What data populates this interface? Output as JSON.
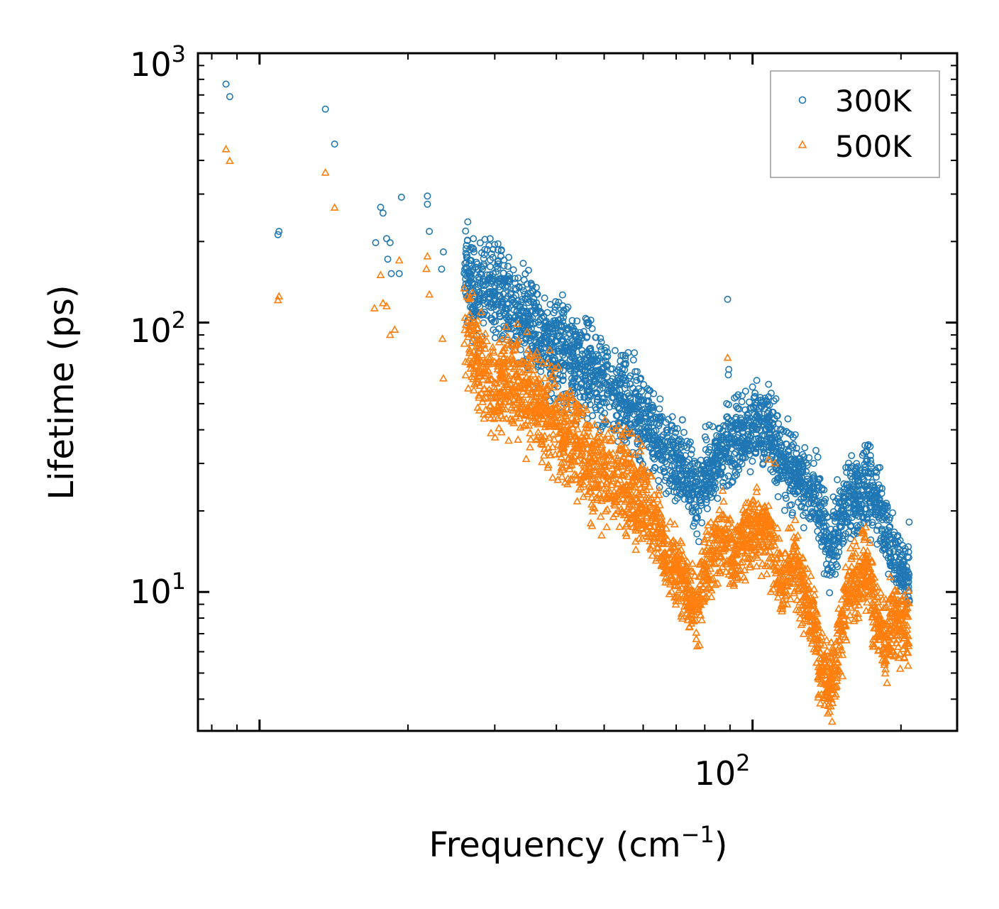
{
  "chart_data": {
    "type": "scatter",
    "xscale": "log",
    "yscale": "log",
    "xlim": [
      7.5,
      260
    ],
    "ylim": [
      3.05,
      1000
    ],
    "xlabel": "Frequency (cm",
    "xlabel_sup": "−1",
    "xlabel_close": ")",
    "ylabel": "Lifetime (ps)",
    "x_ticks": [
      {
        "base": "10",
        "exp": "2",
        "value": 100
      }
    ],
    "y_ticks": [
      {
        "base": "10",
        "exp": "1",
        "value": 10
      },
      {
        "base": "10",
        "exp": "2",
        "value": 100
      },
      {
        "base": "10",
        "exp": "3",
        "value": 1000
      }
    ],
    "legend_position": "top-right",
    "series": [
      {
        "name": "300K",
        "color": "#1f77b4",
        "marker": "circle",
        "anchors": [
          [
            8.55,
            768
          ],
          [
            8.7,
            690
          ],
          [
            10.9,
            212
          ],
          [
            10.95,
            218
          ],
          [
            13.6,
            620
          ],
          [
            14.2,
            460
          ],
          [
            17.2,
            198
          ],
          [
            17.6,
            268
          ],
          [
            17.8,
            255
          ],
          [
            18.1,
            205
          ],
          [
            18.4,
            198
          ],
          [
            18.2,
            172
          ],
          [
            18.5,
            152
          ],
          [
            19.2,
            152
          ],
          [
            19.4,
            292
          ],
          [
            21.9,
            295
          ],
          [
            22.1,
            218
          ],
          [
            21.9,
            275
          ],
          [
            23.4,
            158
          ],
          [
            23.6,
            183
          ],
          [
            26.2,
            160
          ],
          [
            27.2,
            125
          ],
          [
            29.6,
            142
          ],
          [
            32,
            118
          ],
          [
            33.5,
            102
          ],
          [
            36.8,
            90
          ],
          [
            40.5,
            80
          ],
          [
            44.2,
            70
          ],
          [
            47.5,
            64
          ],
          [
            51.8,
            57
          ],
          [
            56.5,
            49
          ],
          [
            61.5,
            41
          ],
          [
            66.5,
            34
          ],
          [
            70.8,
            30
          ],
          [
            74.5,
            27
          ],
          [
            77.2,
            23
          ],
          [
            80.5,
            27
          ],
          [
            85,
            31
          ],
          [
            88.2,
            33
          ],
          [
            91.8,
            37
          ],
          [
            95.5,
            39
          ],
          [
            100,
            40
          ],
          [
            104.5,
            43
          ],
          [
            107.5,
            42
          ],
          [
            111,
            36
          ],
          [
            114.5,
            31
          ],
          [
            119,
            29
          ],
          [
            124,
            26
          ],
          [
            128.5,
            24
          ],
          [
            133.5,
            22.5
          ],
          [
            138.5,
            19
          ],
          [
            143,
            14
          ],
          [
            147,
            15.5
          ],
          [
            150.5,
            19
          ],
          [
            155,
            21
          ],
          [
            160,
            22
          ],
          [
            164,
            23
          ],
          [
            168.5,
            25
          ],
          [
            172.5,
            24
          ],
          [
            177,
            22
          ],
          [
            181,
            21
          ],
          [
            185.5,
            17
          ],
          [
            190.5,
            15
          ],
          [
            195.5,
            13.5
          ],
          [
            200.5,
            12.5
          ],
          [
            206,
            12
          ]
        ],
        "outliers": [
          [
            89,
            122
          ],
          [
            89.5,
            67
          ],
          [
            89.3,
            64
          ],
          [
            102,
            61
          ],
          [
            107.8,
            59
          ],
          [
            129,
            27
          ]
        ]
      },
      {
        "name": "500K",
        "color": "#ff7f0e",
        "marker": "triangle",
        "anchors": [
          [
            8.55,
            440
          ],
          [
            8.7,
            398
          ],
          [
            10.9,
            121
          ],
          [
            10.95,
            125
          ],
          [
            13.6,
            360
          ],
          [
            14.2,
            267
          ],
          [
            17.1,
            113
          ],
          [
            17.6,
            150
          ],
          [
            17.8,
            118
          ],
          [
            18.1,
            115
          ],
          [
            18.4,
            90
          ],
          [
            18.8,
            94
          ],
          [
            19.2,
            170
          ],
          [
            21.9,
            176
          ],
          [
            22.1,
            127
          ],
          [
            21.8,
            158
          ],
          [
            23.5,
            87
          ],
          [
            23.6,
            62
          ],
          [
            26.2,
            98
          ],
          [
            27.2,
            78
          ],
          [
            28.4,
            70
          ],
          [
            29.6,
            55
          ],
          [
            32,
            62
          ],
          [
            33.5,
            58
          ],
          [
            36.8,
            50
          ],
          [
            40.5,
            41
          ],
          [
            44.2,
            34
          ],
          [
            47.5,
            29
          ],
          [
            51.8,
            27
          ],
          [
            56.5,
            25
          ],
          [
            61.5,
            20
          ],
          [
            66.5,
            14
          ],
          [
            70.8,
            12
          ],
          [
            74.5,
            9.5
          ],
          [
            77.2,
            8.8
          ],
          [
            80.5,
            12.5
          ],
          [
            85,
            15.5
          ],
          [
            88.2,
            16.5
          ],
          [
            91.8,
            12.8
          ],
          [
            95.5,
            16
          ],
          [
            100,
            17.5
          ],
          [
            104.5,
            17
          ],
          [
            107.5,
            16
          ],
          [
            111,
            12.8
          ],
          [
            114.5,
            10.5
          ],
          [
            119,
            12.5
          ],
          [
            124,
            11.5
          ],
          [
            128.5,
            9.5
          ],
          [
            133.5,
            7.2
          ],
          [
            138.5,
            5.2
          ],
          [
            143,
            4.6
          ],
          [
            147,
            5.3
          ],
          [
            150.5,
            6.6
          ],
          [
            155,
            9.2
          ],
          [
            160,
            10.5
          ],
          [
            164,
            10.2
          ],
          [
            168.5,
            12
          ],
          [
            172.5,
            10.5
          ],
          [
            177,
            8.5
          ],
          [
            181,
            7.5
          ],
          [
            185.5,
            6.8
          ],
          [
            190.5,
            7.3
          ],
          [
            195.5,
            8
          ],
          [
            200.5,
            7.8
          ],
          [
            206,
            7.5
          ]
        ],
        "outliers": [
          [
            89,
            74
          ],
          [
            107.8,
            31
          ],
          [
            145,
            3.3
          ],
          [
            111,
            30
          ]
        ]
      }
    ]
  }
}
